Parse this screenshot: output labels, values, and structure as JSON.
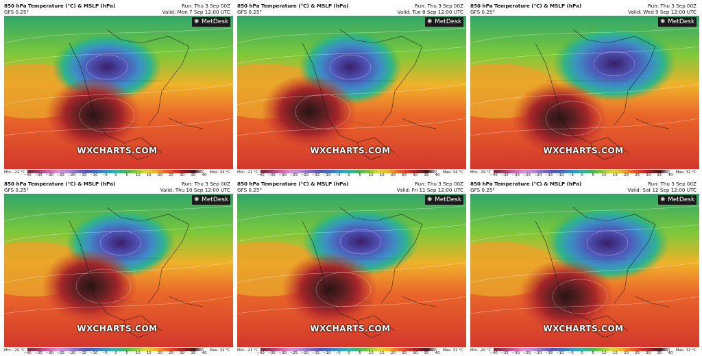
{
  "header": {
    "title": "850 hPa Temperature (°C) & MSLP (hPa)",
    "model": "GFS 0.25°",
    "run": "Run: Thu 3 Sep 00Z"
  },
  "branding": {
    "logo_text": "MetDesk",
    "watermark": "WXCHARTS.COM"
  },
  "colorbar": {
    "ticks": [
      "−40",
      "−35",
      "−30",
      "−25",
      "−20",
      "−15",
      "−10",
      "−5",
      "0",
      "5",
      "10",
      "15",
      "20",
      "25",
      "30",
      "35",
      "40"
    ],
    "colors": [
      "#6b2b3b",
      "#9b3a63",
      "#c85b9c",
      "#d58fd0",
      "#b48bd9",
      "#7d6ec9",
      "#4f56b8",
      "#3c6fc4",
      "#2f97c9",
      "#2fb4a8",
      "#3fb45b",
      "#7cc83a",
      "#d6d83a",
      "#f0b22a",
      "#e9672a",
      "#d3372c",
      "#8e1f24",
      "#3a1c1d",
      "#dcdcdc"
    ]
  },
  "panels": [
    {
      "valid": "Valid: Mon 7 Sep 12:00 UTC",
      "min": "Min: -22 °C",
      "max": "Max: 34 °C"
    },
    {
      "valid": "Valid: Tue 8 Sep 12:00 UTC",
      "min": "Min: -21 °C",
      "max": "Max: 34 °C"
    },
    {
      "valid": "Valid: Wed 9 Sep 12:00 UTC",
      "min": "Min: -19 °C",
      "max": "Max: 32 °C"
    },
    {
      "valid": "Valid: Thu 10 Sep 12:00 UTC",
      "min": "Min: -20 °C",
      "max": "Max: 32 °C"
    },
    {
      "valid": "Valid: Fri 11 Sep 12:00 UTC",
      "min": "Min: -21 °C",
      "max": "Max: 32 °C"
    },
    {
      "valid": "Valid: Sat 12 Sep 12:00 UTC",
      "min": "Min: -20 °C",
      "max": "Max: 32 °C"
    }
  ]
}
